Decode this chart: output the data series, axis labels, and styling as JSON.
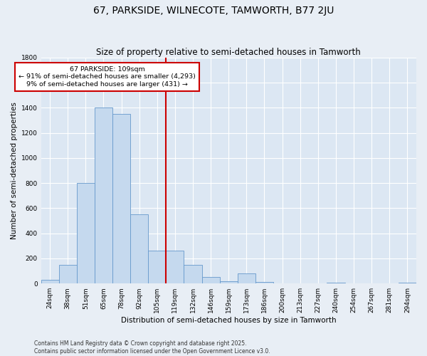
{
  "title": "67, PARKSIDE, WILNECOTE, TAMWORTH, B77 2JU",
  "subtitle": "Size of property relative to semi-detached houses in Tamworth",
  "xlabel": "Distribution of semi-detached houses by size in Tamworth",
  "ylabel": "Number of semi-detached properties",
  "bins": [
    "24sqm",
    "38sqm",
    "51sqm",
    "65sqm",
    "78sqm",
    "92sqm",
    "105sqm",
    "119sqm",
    "132sqm",
    "146sqm",
    "159sqm",
    "173sqm",
    "186sqm",
    "200sqm",
    "213sqm",
    "227sqm",
    "240sqm",
    "254sqm",
    "267sqm",
    "281sqm",
    "294sqm"
  ],
  "values": [
    30,
    150,
    800,
    1400,
    1350,
    550,
    260,
    260,
    150,
    50,
    20,
    80,
    10,
    0,
    0,
    0,
    5,
    0,
    0,
    0,
    5
  ],
  "bar_color": "#c5d9ee",
  "bar_edge_color": "#6699cc",
  "vline_color": "#cc0000",
  "vline_x_index": 6,
  "annotation_line1": "67 PARKSIDE: 109sqm",
  "annotation_line2": "← 91% of semi-detached houses are smaller (4,293)",
  "annotation_line3": "9% of semi-detached houses are larger (431) →",
  "annotation_box_color": "#ffffff",
  "annotation_box_edge": "#cc0000",
  "footer1": "Contains HM Land Registry data © Crown copyright and database right 2025.",
  "footer2": "Contains public sector information licensed under the Open Government Licence v3.0.",
  "ylim": [
    0,
    1800
  ],
  "yticks": [
    0,
    200,
    400,
    600,
    800,
    1000,
    1200,
    1400,
    1600,
    1800
  ],
  "fig_bg_color": "#e8eef5",
  "plot_bg_color": "#dce7f3",
  "title_fontsize": 10,
  "subtitle_fontsize": 8.5,
  "axis_label_fontsize": 7.5,
  "tick_fontsize": 6.5,
  "footer_fontsize": 5.5
}
